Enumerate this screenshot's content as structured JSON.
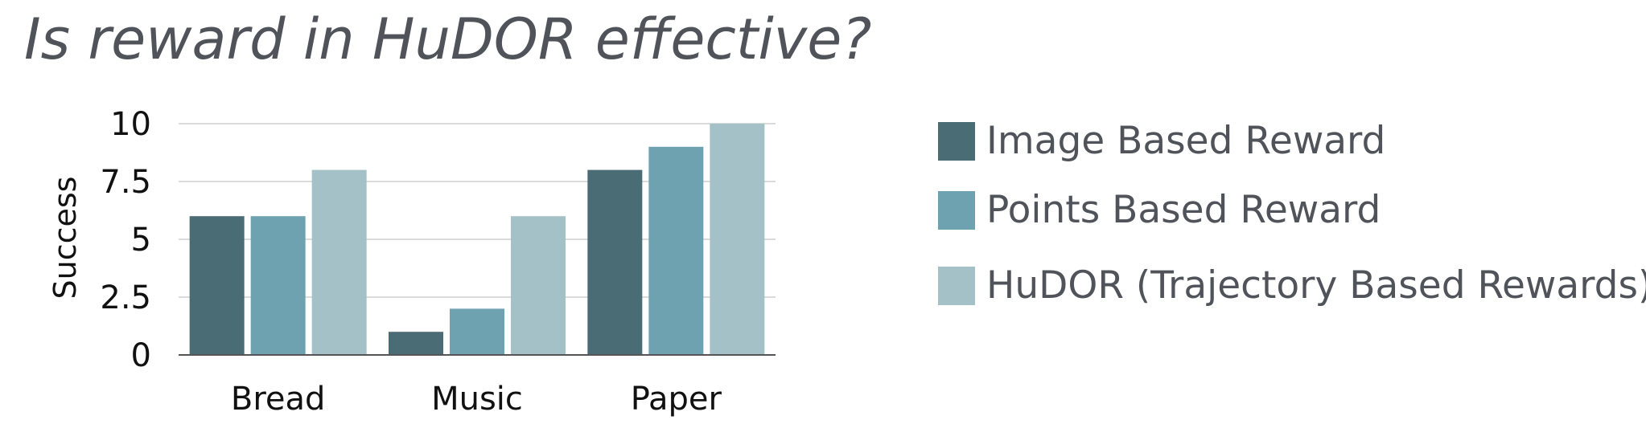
{
  "title": "Is reward in HuDOR effective?",
  "colors": {
    "title": "#50545a",
    "axis": "#555555",
    "grid": "#cfcfcf",
    "series": [
      "#4a6c75",
      "#6fa2b1",
      "#a5c1c8"
    ]
  },
  "chart_data": {
    "type": "bar",
    "title": "Is reward in HuDOR effective?",
    "xlabel": "",
    "ylabel": "Success",
    "ylim": [
      0,
      10
    ],
    "yticks": [
      0,
      2.5,
      5,
      7.5,
      10
    ],
    "ytick_labels": [
      "0",
      "2.5",
      "5",
      "7.5",
      "10"
    ],
    "grid": true,
    "legend_position": "right",
    "categories": [
      "Bread",
      "Music",
      "Paper"
    ],
    "series": [
      {
        "name": "Image Based Reward",
        "values": [
          6,
          1,
          8
        ]
      },
      {
        "name": "Points Based Reward",
        "values": [
          6,
          2,
          9
        ]
      },
      {
        "name": "HuDOR (Trajectory Based Rewards)",
        "values": [
          8,
          6,
          10
        ]
      }
    ]
  }
}
